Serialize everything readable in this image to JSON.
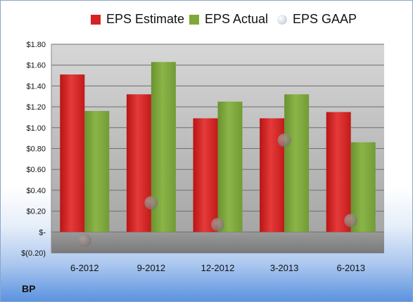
{
  "legend": [
    {
      "label": "EPS Estimate",
      "color": "#d62222",
      "shape": "square"
    },
    {
      "label": "EPS Actual",
      "color": "#7fa83a",
      "shape": "square"
    },
    {
      "label": "EPS GAAP",
      "color": "#c9cfd8",
      "shape": "circle"
    }
  ],
  "ticker": "BP",
  "chart_data": {
    "type": "bar",
    "categories": [
      "6-2012",
      "9-2012",
      "12-2012",
      "3-2013",
      "6-2013"
    ],
    "series": [
      {
        "name": "EPS Estimate",
        "type": "bar",
        "color": "#d62222",
        "values": [
          1.51,
          1.32,
          1.09,
          1.09,
          1.15
        ]
      },
      {
        "name": "EPS Actual",
        "type": "bar",
        "color": "#7fa83a",
        "values": [
          1.16,
          1.63,
          1.25,
          1.32,
          0.86
        ]
      },
      {
        "name": "EPS GAAP",
        "type": "scatter",
        "color": "#9b8f8a",
        "values": [
          -0.08,
          0.28,
          0.07,
          0.88,
          0.11
        ]
      }
    ],
    "y_ticks": [
      "$1.80",
      "$1.60",
      "$1.40",
      "$1.20",
      "$1.00",
      "$0.80",
      "$0.60",
      "$0.40",
      "$0.20",
      "$-",
      "$(0.20)"
    ],
    "ylim": [
      -0.2,
      1.8
    ],
    "grid": true,
    "legend_position": "top"
  }
}
